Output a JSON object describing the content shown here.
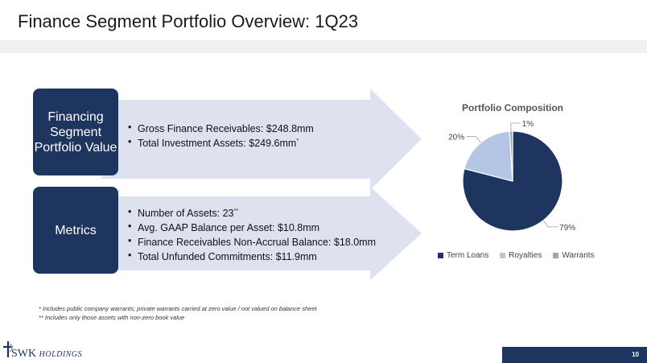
{
  "slide": {
    "title": "Finance Segment Portfolio Overview: 1Q23",
    "page_number": "10"
  },
  "sections": [
    {
      "label": "Financing Segment Portfolio Value",
      "bullets": [
        {
          "text": "Gross Finance Receivables: $248.8mm",
          "mark": ""
        },
        {
          "text": "Total Investment Assets: $249.6mm",
          "mark": "*"
        }
      ]
    },
    {
      "label": "Metrics",
      "bullets": [
        {
          "text": "Number of Assets: 23",
          "mark": "**"
        },
        {
          "text": "Avg. GAAP Balance per Asset: $10.8mm",
          "mark": ""
        },
        {
          "text": "Finance Receivables Non-Accrual Balance: $18.0mm",
          "mark": ""
        },
        {
          "text": "Total Unfunded Commitments: $11.9mm",
          "mark": ""
        }
      ]
    }
  ],
  "chart_data": {
    "type": "pie",
    "title": "Portfolio Composition",
    "categories": [
      "Term Loans",
      "Royalties",
      "Warrants"
    ],
    "values": [
      79,
      20,
      1
    ],
    "labels": [
      "79%",
      "20%",
      "1%"
    ],
    "colors": [
      "#1e3560",
      "#b4c6e4",
      "#a5a5a5"
    ],
    "legend": "bottom"
  },
  "footnotes": [
    "* Includes public company warrants; private warrants carried at zero value / not valued on balance sheet",
    "** Includes only those assets with non-zero book value"
  ],
  "logo": {
    "name": "SWK",
    "sub": "HOLDINGS"
  },
  "theme": {
    "navy": "#1e3560",
    "arrow_fill": "#dde2ee"
  }
}
